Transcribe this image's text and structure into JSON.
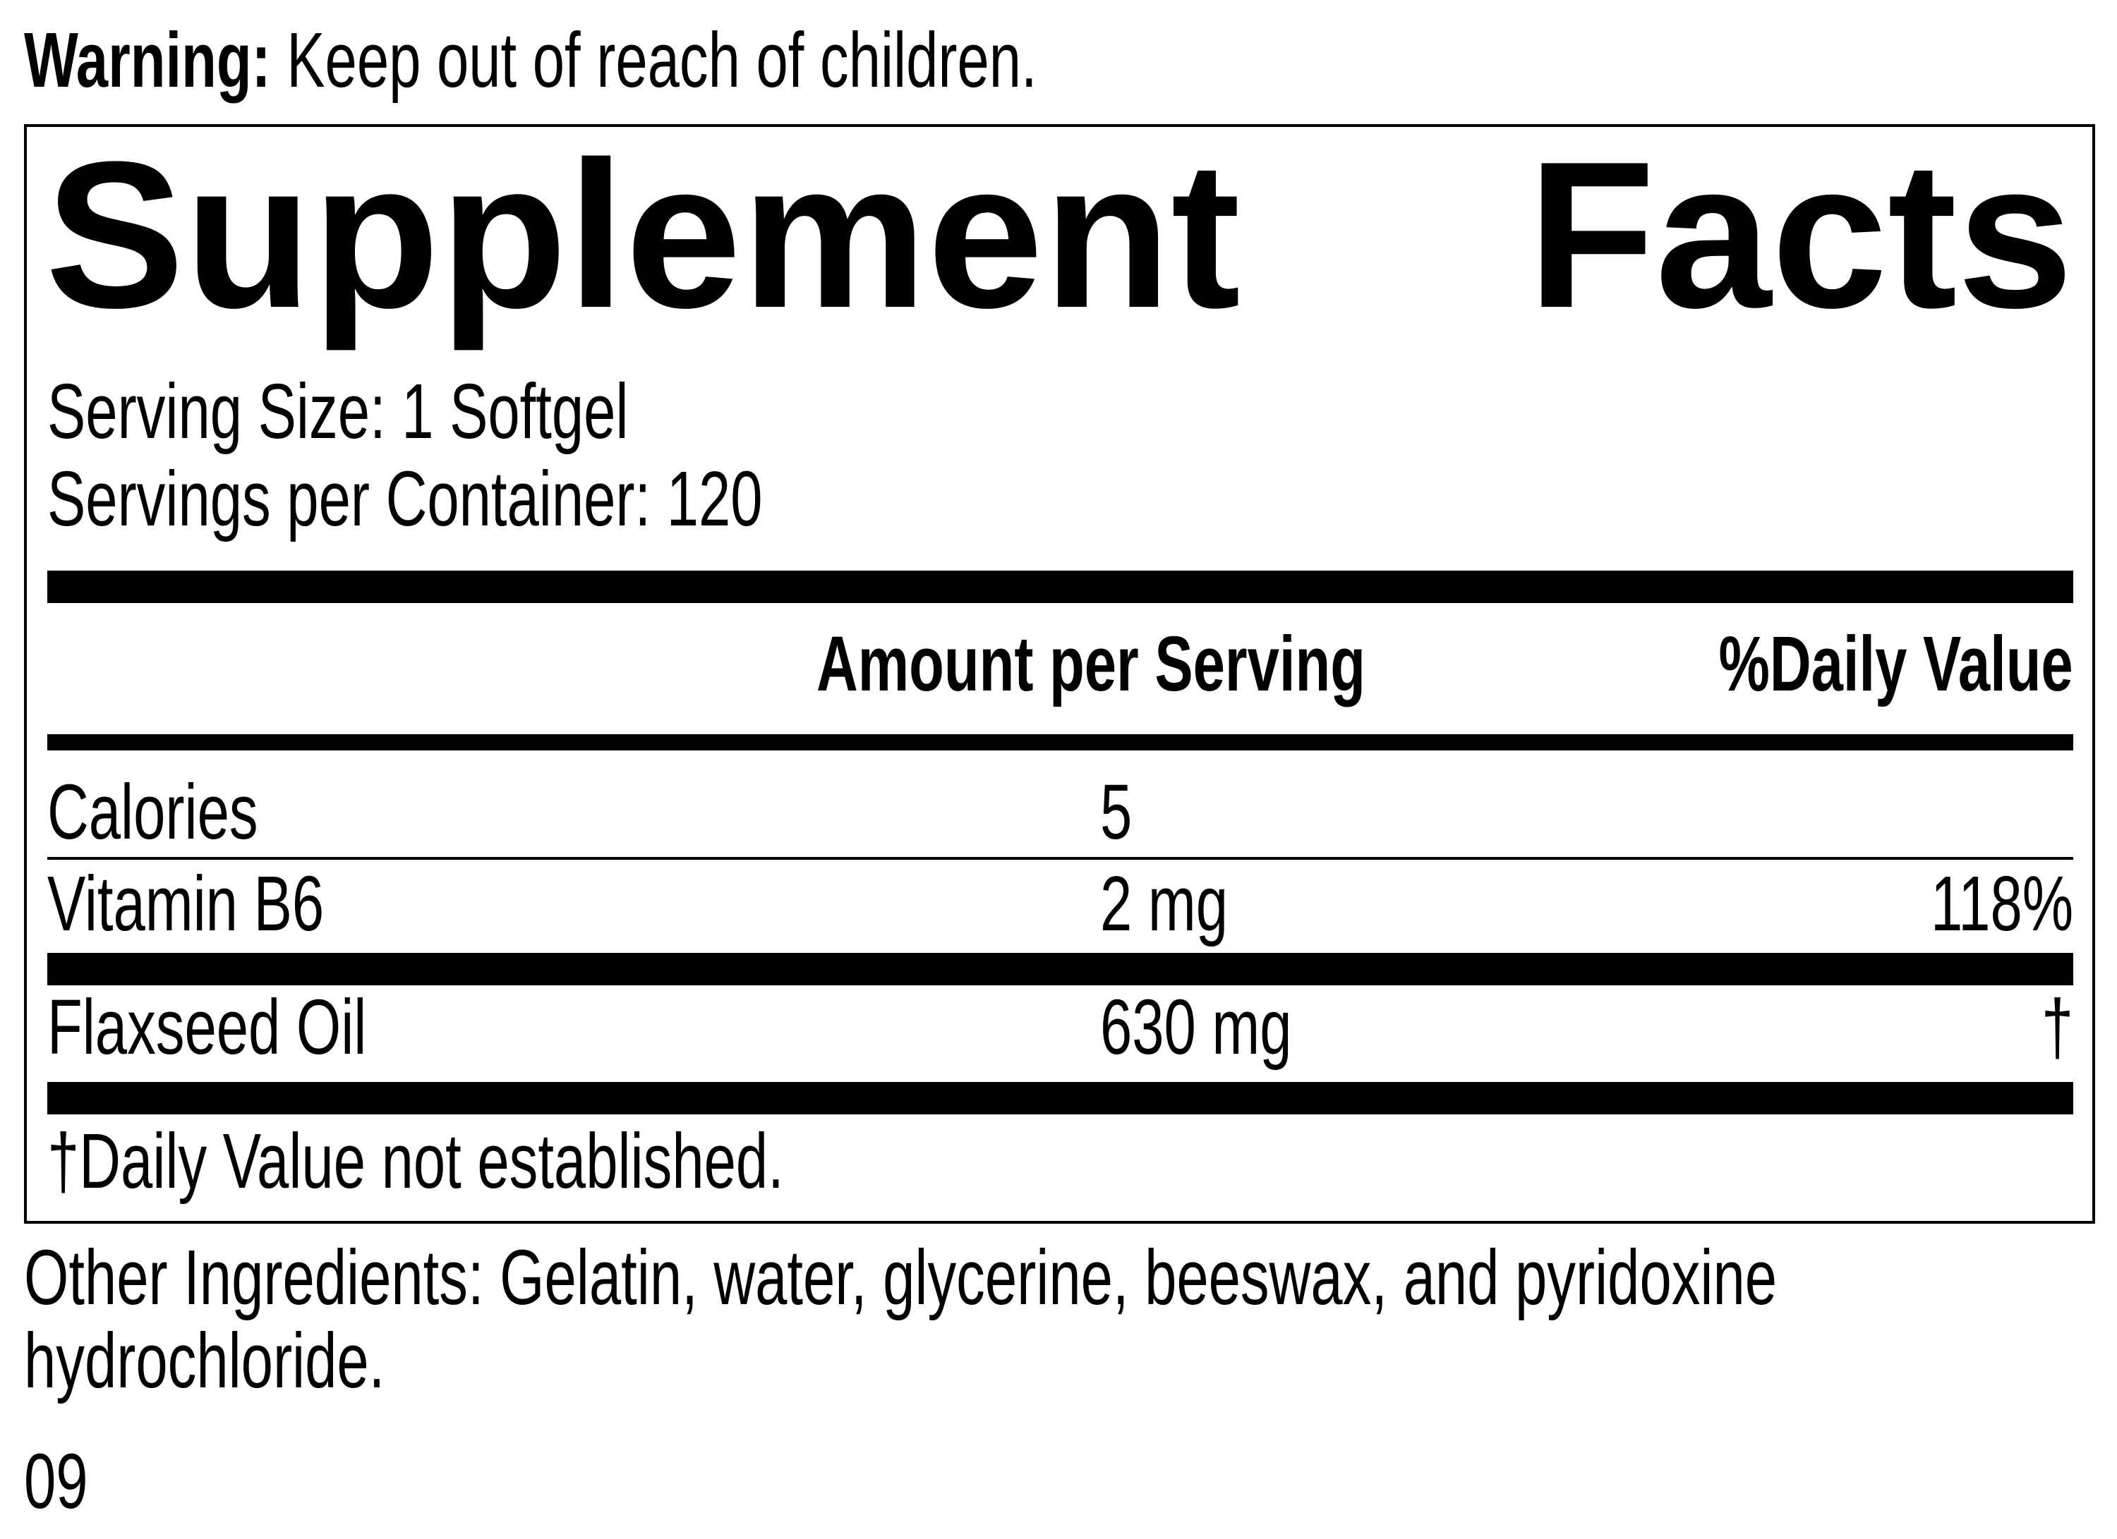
{
  "warning": {
    "label": "Warning:",
    "text": " Keep out of reach of children."
  },
  "title": {
    "word1": "Supplement",
    "word2": "Facts"
  },
  "serving_size": "Serving Size: 1 Softgel",
  "servings_per_container": "Servings per Container: 120",
  "columns": {
    "amount": "Amount per Serving",
    "daily_value": "%Daily Value"
  },
  "rows": [
    {
      "name": "Calories",
      "amount": "5",
      "dv": ""
    },
    {
      "name": "Vitamin B6",
      "amount": "2 mg",
      "dv": "118%"
    },
    {
      "name": "Flaxseed Oil",
      "amount": "630 mg",
      "dv": "†"
    }
  ],
  "footnote": "†Daily Value not established.",
  "other_ingredients": {
    "line1": "Other Ingredients: Gelatin, water, glycerine, beeswax, and pyridoxine",
    "line2": "hydrochloride."
  },
  "code": "09"
}
